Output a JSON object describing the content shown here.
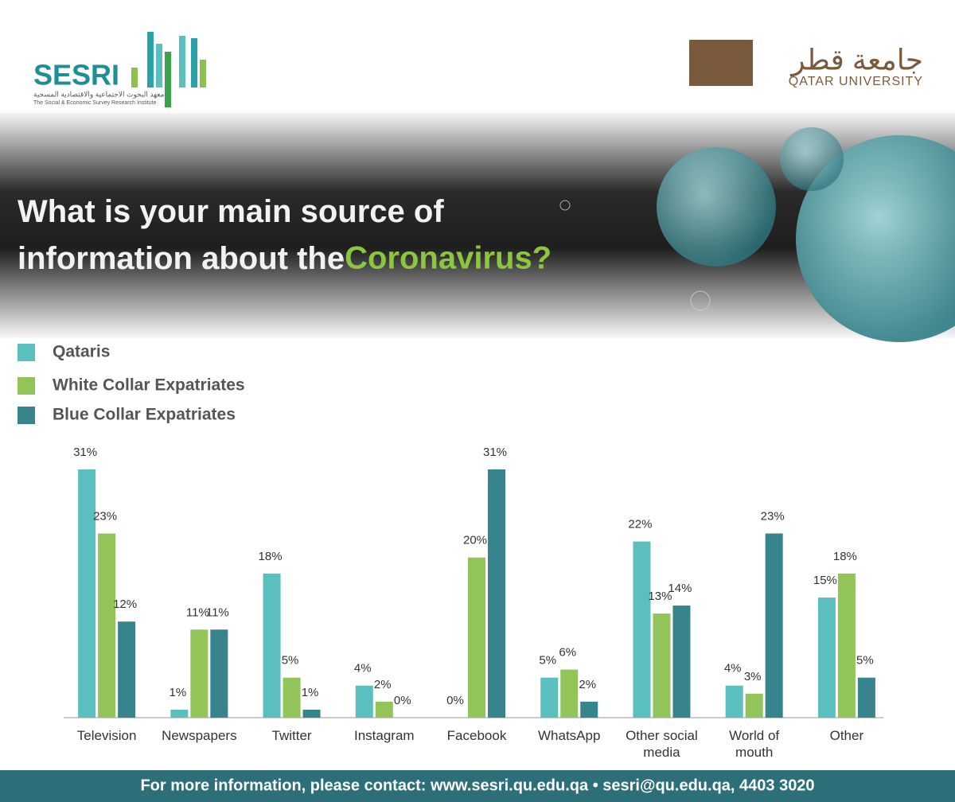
{
  "header": {
    "sesri": "SESRI",
    "sesri_arabic": "معهد البحوث الاجتماعية والاقتصادية المسحية",
    "sesri_full": "The Social & Economic Survey Research Institute",
    "qu_arabic": "جامعة قطر",
    "qu": "QATAR UNIVERSITY"
  },
  "chart_data": {
    "type": "bar",
    "title": "What is your main source of information about the",
    "title_highlight": "Coronavirus?",
    "categories": [
      "Television",
      "Newspapers",
      "Twitter",
      "Instagram",
      "Facebook",
      "WhatsApp",
      "Other social media",
      "World of mouth",
      "Other"
    ],
    "series": [
      {
        "name": "Qataris",
        "color": "#5bbfbf",
        "values": [
          31,
          1,
          18,
          4,
          0,
          5,
          22,
          4,
          15
        ],
        "value_labels": [
          "31%",
          "1%",
          "18%",
          "4%",
          "0%",
          "5%",
          "22%",
          "4%",
          "15%"
        ]
      },
      {
        "name": "White Collar Expatriates",
        "color": "#92c45a",
        "values": [
          23,
          11,
          5,
          2,
          20,
          6,
          13,
          3,
          18
        ],
        "value_labels": [
          "23%",
          "11%",
          "5%",
          "2%",
          "20%",
          "6%",
          "13%",
          "3%",
          "18%"
        ]
      },
      {
        "name": "Blue Collar Expatriates",
        "color": "#37848c",
        "values": [
          12,
          11,
          1,
          0,
          31,
          2,
          14,
          23,
          5
        ],
        "value_labels": [
          "12%",
          "11%",
          "1%",
          "0%",
          "31%",
          "2%",
          "14%",
          "23%",
          "5%"
        ]
      }
    ]
  },
  "footer": "For more information, please contact: www.sesri.qu.edu.qa • sesri@qu.edu.qa,  4403 3020"
}
